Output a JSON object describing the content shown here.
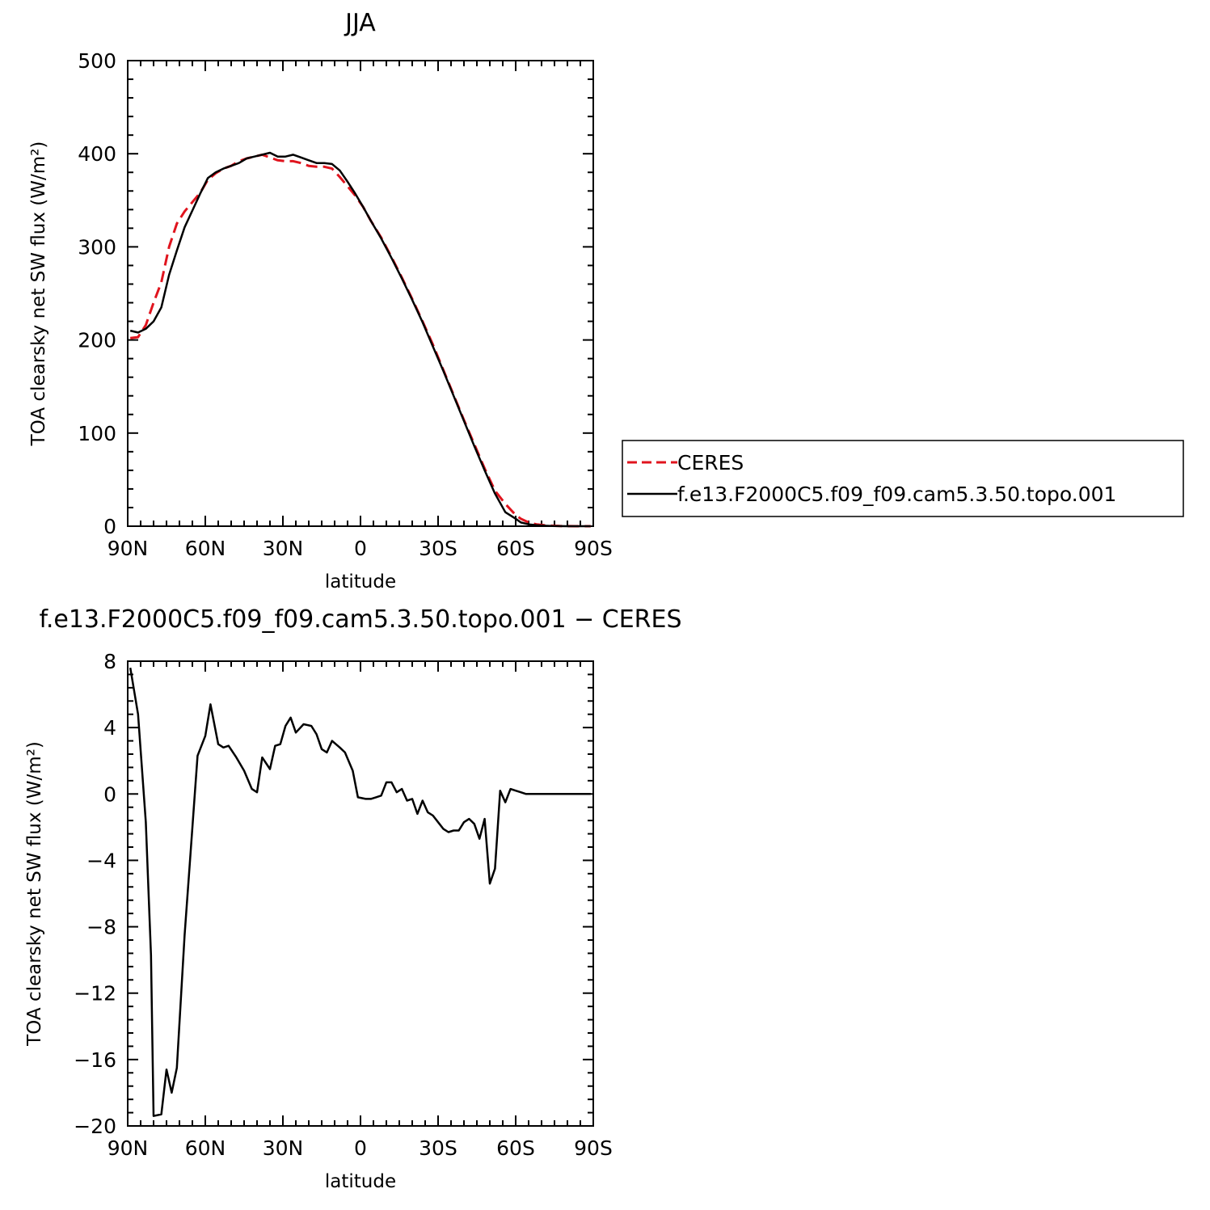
{
  "chart_data": [
    {
      "type": "line",
      "title": "JJA",
      "xlabel": "latitude",
      "ylabel": "TOA clearsky net SW flux (W/m²)",
      "xlim": [
        90,
        -90
      ],
      "ylim": [
        0,
        500
      ],
      "xticks": [
        90,
        60,
        30,
        0,
        -30,
        -60,
        -90
      ],
      "xtick_labels": [
        "90N",
        "60N",
        "30N",
        "0",
        "30S",
        "60S",
        "90S"
      ],
      "yticks": [
        0,
        100,
        200,
        300,
        400,
        500
      ],
      "ytick_labels": [
        "0",
        "100",
        "200",
        "300",
        "400",
        "500"
      ],
      "legend": "right",
      "series": [
        {
          "name": "CERES",
          "color": "#e0141e",
          "style": "dashed",
          "x": [
            89,
            86,
            83,
            80,
            77,
            74,
            71,
            68,
            65,
            62,
            59,
            56,
            53,
            50,
            47,
            44,
            41,
            38,
            35,
            32,
            29,
            26,
            23,
            20,
            17,
            14,
            11,
            8,
            5,
            2,
            -1,
            -4,
            -8,
            -12,
            -16,
            -20,
            -24,
            -28,
            -32,
            -36,
            -40,
            -44,
            -48,
            -52,
            -56,
            -60,
            -62,
            -65,
            -68,
            -71,
            -74,
            -77,
            -80,
            -83,
            -86,
            -89
          ],
          "y": [
            202,
            203,
            216,
            240,
            262,
            300,
            325,
            338,
            348,
            358,
            372,
            379,
            384,
            387,
            392,
            395,
            397,
            399,
            396,
            393,
            392,
            392,
            390,
            387,
            386,
            386,
            384,
            375,
            365,
            355,
            343,
            328,
            310,
            289,
            267,
            244,
            220,
            195,
            168,
            141,
            114,
            88,
            62,
            38,
            24,
            12,
            8,
            4,
            2,
            1,
            0.5,
            0.2,
            0.1,
            0,
            0,
            0
          ]
        },
        {
          "name": "f.e13.F2000C5.f09_f09.cam5.3.50.topo.001",
          "color": "#000000",
          "style": "solid",
          "x": [
            89,
            86,
            83,
            80,
            77,
            74,
            71,
            68,
            65,
            62,
            59,
            56,
            53,
            50,
            47,
            44,
            41,
            38,
            35,
            32,
            29,
            26,
            23,
            20,
            17,
            14,
            11,
            8,
            5,
            2,
            -1,
            -4,
            -8,
            -12,
            -16,
            -20,
            -24,
            -28,
            -32,
            -36,
            -40,
            -44,
            -48,
            -52,
            -56,
            -60,
            -62,
            -65,
            -68,
            -71,
            -74,
            -77,
            -80,
            -83,
            -86,
            -89
          ],
          "y": [
            210,
            208,
            212,
            220,
            235,
            270,
            296,
            321,
            339,
            357,
            374,
            380,
            384,
            387,
            390,
            395,
            397,
            399,
            401,
            397,
            397,
            399,
            396,
            393,
            390,
            390,
            389,
            382,
            370,
            357,
            343,
            328,
            309,
            288,
            266,
            243,
            219,
            193,
            167,
            140,
            113,
            86,
            60,
            35,
            15,
            8,
            4,
            2,
            1,
            0.5,
            0.2,
            0.1,
            0,
            0,
            0,
            0
          ]
        }
      ]
    },
    {
      "type": "line",
      "title": "f.e13.F2000C5.f09_f09.cam5.3.50.topo.001 − CERES",
      "xlabel": "latitude",
      "ylabel": "TOA clearsky net SW flux (W/m²)",
      "xlim": [
        90,
        -90
      ],
      "ylim": [
        -20,
        8
      ],
      "xticks": [
        90,
        60,
        30,
        0,
        -30,
        -60,
        -90
      ],
      "xtick_labels": [
        "90N",
        "60N",
        "30N",
        "0",
        "30S",
        "60S",
        "90S"
      ],
      "yticks": [
        8,
        4,
        0,
        -4,
        -8,
        -12,
        -16,
        -20
      ],
      "ytick_labels": [
        "8",
        "4",
        "0",
        "−4",
        "−8",
        "−12",
        "−16",
        "−20"
      ],
      "series": [
        {
          "color": "#000000",
          "style": "solid",
          "x": [
            89,
            86,
            83,
            81,
            80,
            77,
            75,
            73,
            71,
            68,
            66,
            63,
            60,
            58,
            55,
            53,
            51,
            48,
            45,
            42,
            40,
            38,
            35,
            33,
            31,
            29,
            27,
            25,
            22,
            19,
            17,
            15,
            13,
            11,
            8,
            6,
            3,
            1,
            -2,
            -4,
            -6,
            -8,
            -10,
            -12,
            -14,
            -16,
            -18,
            -20,
            -22,
            -24,
            -26,
            -28,
            -30,
            -32,
            -34,
            -36,
            -38,
            -40,
            -42,
            -44,
            -46,
            -48,
            -50,
            -52,
            -54,
            -56,
            -58,
            -60,
            -62,
            -64,
            -66,
            -68,
            -70,
            -72,
            -74,
            -76,
            -80,
            -86,
            -89
          ],
          "y": [
            7.6,
            4.8,
            -1.7,
            -9.7,
            -19.4,
            -19.3,
            -16.6,
            -18.0,
            -16.5,
            -8.5,
            -4.2,
            2.3,
            3.5,
            5.4,
            3.0,
            2.8,
            2.9,
            2.2,
            1.4,
            0.3,
            0.1,
            2.2,
            1.5,
            2.9,
            3.0,
            4.1,
            4.6,
            3.7,
            4.2,
            4.1,
            3.6,
            2.7,
            2.5,
            3.2,
            2.8,
            2.5,
            1.4,
            -0.2,
            -0.3,
            -0.3,
            -0.2,
            -0.1,
            0.7,
            0.7,
            0.1,
            0.3,
            -0.4,
            -0.3,
            -1.2,
            -0.4,
            -1.1,
            -1.3,
            -1.7,
            -2.1,
            -2.3,
            -2.2,
            -2.2,
            -1.7,
            -1.5,
            -1.8,
            -2.7,
            -1.5,
            -5.4,
            -4.5,
            0.2,
            -0.5,
            0.3,
            0.2,
            0.1,
            0,
            0,
            0,
            0,
            0,
            0,
            0,
            0,
            0,
            0
          ]
        }
      ]
    }
  ]
}
